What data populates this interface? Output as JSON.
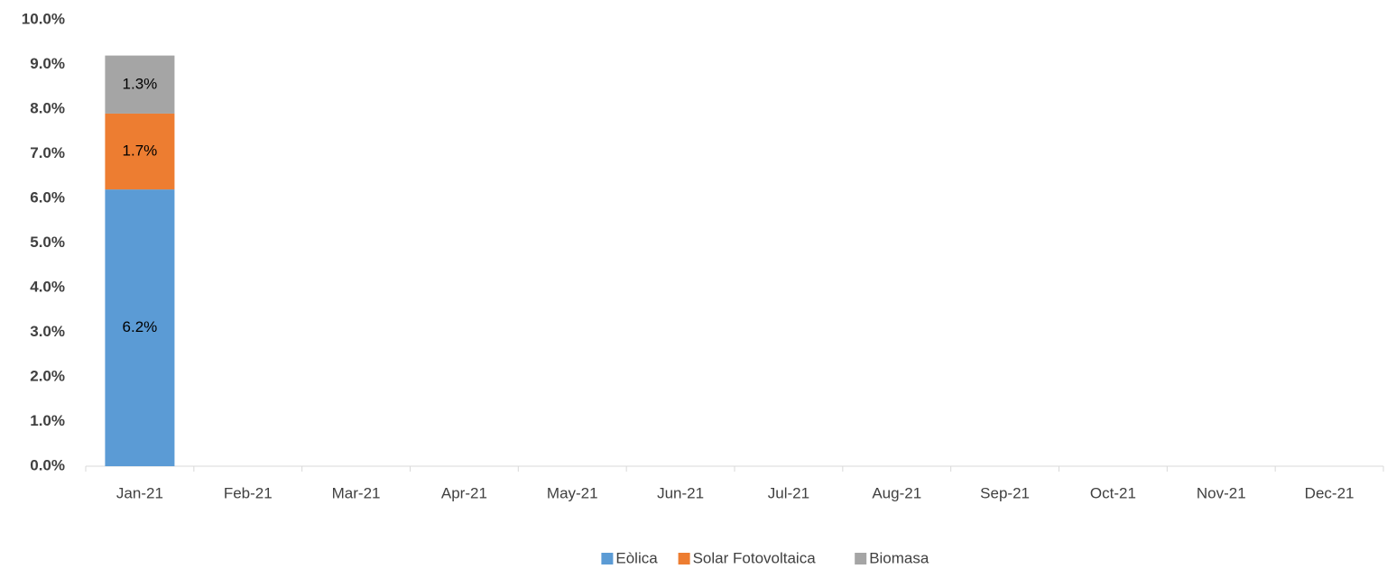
{
  "chart_data": {
    "type": "stacked_bar",
    "categories": [
      "Jan-21",
      "Feb-21",
      "Mar-21",
      "Apr-21",
      "May-21",
      "Jun-21",
      "Jul-21",
      "Aug-21",
      "Sep-21",
      "Oct-21",
      "Nov-21",
      "Dec-21"
    ],
    "series": [
      {
        "name": "Eòlica",
        "color": "#5b9bd5",
        "values": [
          6.2,
          null,
          null,
          null,
          null,
          null,
          null,
          null,
          null,
          null,
          null,
          null
        ],
        "value_labels": [
          "6.2%",
          null,
          null,
          null,
          null,
          null,
          null,
          null,
          null,
          null,
          null,
          null
        ]
      },
      {
        "name": "Solar Fotovoltaica",
        "color": "#ed7d31",
        "values": [
          1.7,
          null,
          null,
          null,
          null,
          null,
          null,
          null,
          null,
          null,
          null,
          null
        ],
        "value_labels": [
          "1.7%",
          null,
          null,
          null,
          null,
          null,
          null,
          null,
          null,
          null,
          null,
          null
        ]
      },
      {
        "name": "Biomasa",
        "color": "#a5a5a5",
        "values": [
          1.3,
          null,
          null,
          null,
          null,
          null,
          null,
          null,
          null,
          null,
          null,
          null
        ],
        "value_labels": [
          "1.3%",
          null,
          null,
          null,
          null,
          null,
          null,
          null,
          null,
          null,
          null,
          null
        ]
      }
    ],
    "ylim": [
      0,
      10
    ],
    "yticks": [
      {
        "value": 0,
        "label": "0.0%"
      },
      {
        "value": 1,
        "label": "1.0%"
      },
      {
        "value": 2,
        "label": "2.0%"
      },
      {
        "value": 3,
        "label": "3.0%"
      },
      {
        "value": 4,
        "label": "4.0%"
      },
      {
        "value": 5,
        "label": "5.0%"
      },
      {
        "value": 6,
        "label": "6.0%"
      },
      {
        "value": 7,
        "label": "7.0%"
      },
      {
        "value": 8,
        "label": "8.0%"
      },
      {
        "value": 9,
        "label": "9.0%"
      },
      {
        "value": 10,
        "label": "10.0%"
      }
    ],
    "grid": false,
    "legend": "bottom"
  }
}
